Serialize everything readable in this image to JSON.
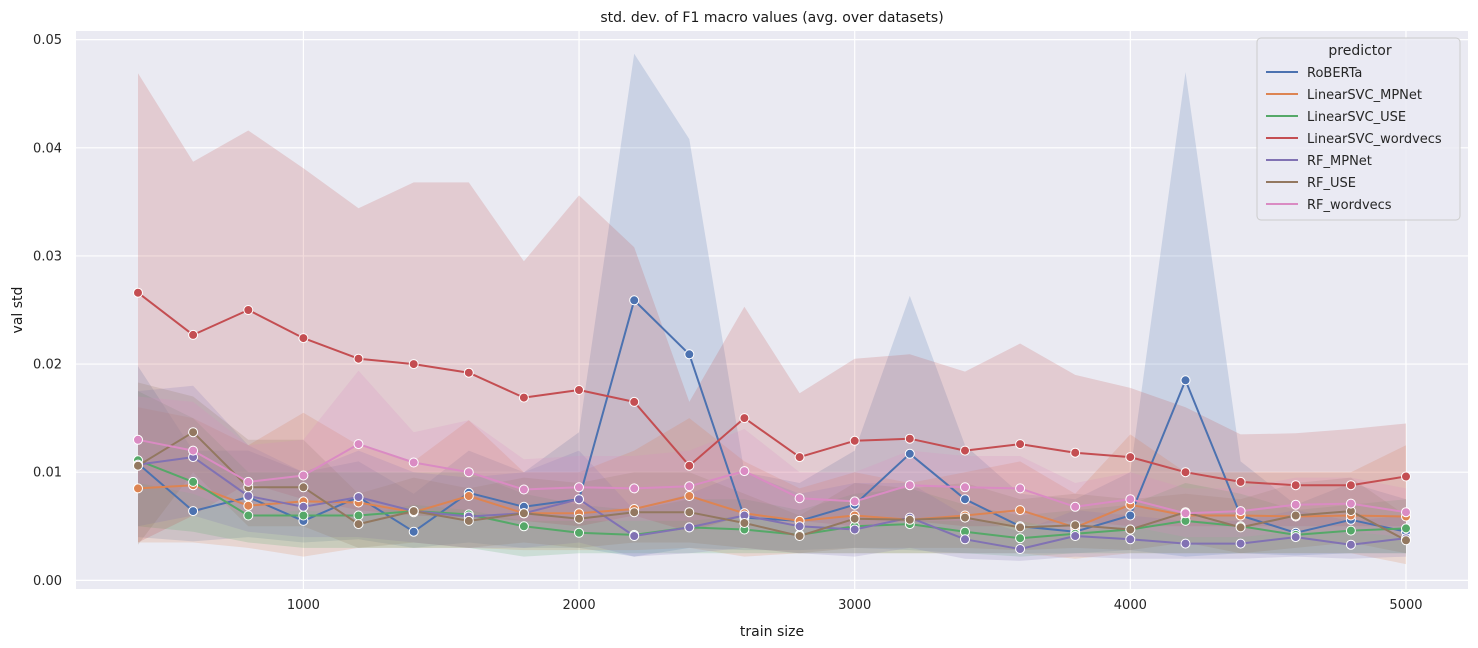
{
  "chart_data": {
    "type": "line",
    "title": "std. dev. of F1 macro values (avg. over datasets)",
    "xlabel": "train size",
    "ylabel": "val std",
    "xlim": [
      175,
      5225
    ],
    "ylim": [
      -0.0008,
      0.0508
    ],
    "xticks": [
      1000,
      2000,
      3000,
      4000,
      5000
    ],
    "xtick_labels": [
      "1000",
      "2000",
      "3000",
      "4000",
      "5000"
    ],
    "yticks": [
      0,
      0.01,
      0.02,
      0.03,
      0.04,
      0.05
    ],
    "ytick_labels": [
      "0.00",
      "0.01",
      "0.02",
      "0.03",
      "0.04",
      "0.05"
    ],
    "grid": true,
    "legend": {
      "title": "predictor",
      "placement": "top-right"
    },
    "x": [
      400,
      600,
      800,
      1000,
      1200,
      1400,
      1600,
      1800,
      2000,
      2200,
      2400,
      2600,
      2800,
      3000,
      3200,
      3400,
      3600,
      3800,
      4000,
      4200,
      4400,
      4600,
      4800,
      5000
    ],
    "series": [
      {
        "name": "RoBERTa",
        "color": "#4c72b0",
        "values": [
          0.0108,
          0.0064,
          0.0077,
          0.0055,
          0.0077,
          0.0045,
          0.0081,
          0.0068,
          0.0075,
          0.0259,
          0.0209,
          0.0058,
          0.0055,
          0.007,
          0.0117,
          0.0075,
          0.005,
          0.0045,
          0.006,
          0.0185,
          0.006,
          0.0044,
          0.0056,
          0.0045
        ],
        "band_lower": [
          0.004,
          0.0036,
          0.004,
          0.0035,
          0.0038,
          0.003,
          0.0035,
          0.003,
          0.003,
          0.0022,
          0.003,
          0.0028,
          0.0028,
          0.003,
          0.0028,
          0.0025,
          0.0025,
          0.0025,
          0.0028,
          0.0022,
          0.0025,
          0.0023,
          0.0025,
          0.0025
        ],
        "band_upper": [
          0.0198,
          0.012,
          0.012,
          0.01,
          0.011,
          0.008,
          0.012,
          0.01,
          0.0137,
          0.0487,
          0.0408,
          0.01,
          0.009,
          0.012,
          0.0263,
          0.0125,
          0.008,
          0.0075,
          0.01,
          0.047,
          0.011,
          0.007,
          0.009,
          0.0075
        ]
      },
      {
        "name": "LinearSVC_MPNet",
        "color": "#dd8452",
        "values": [
          0.0085,
          0.0088,
          0.0069,
          0.0073,
          0.0072,
          0.0063,
          0.0078,
          0.0062,
          0.0062,
          0.0066,
          0.0078,
          0.0062,
          0.0055,
          0.006,
          0.0056,
          0.006,
          0.0065,
          0.0049,
          0.007,
          0.006,
          0.006,
          0.0059,
          0.006,
          0.0059
        ],
        "band_lower": [
          0.0035,
          0.0035,
          0.003,
          0.0022,
          0.003,
          0.003,
          0.003,
          0.0028,
          0.0028,
          0.0028,
          0.003,
          0.0022,
          0.0025,
          0.0025,
          0.0025,
          0.0025,
          0.0025,
          0.002,
          0.0025,
          0.0025,
          0.0025,
          0.0025,
          0.0025,
          0.0015
        ],
        "band_upper": [
          0.016,
          0.015,
          0.0125,
          0.0155,
          0.0125,
          0.011,
          0.0148,
          0.01,
          0.01,
          0.012,
          0.015,
          0.011,
          0.0085,
          0.01,
          0.009,
          0.01,
          0.011,
          0.008,
          0.0135,
          0.01,
          0.01,
          0.01,
          0.01,
          0.0125
        ]
      },
      {
        "name": "LinearSVC_USE",
        "color": "#55a868",
        "values": [
          0.0111,
          0.0091,
          0.006,
          0.006,
          0.006,
          0.0064,
          0.0061,
          0.005,
          0.0044,
          0.0042,
          0.0049,
          0.0047,
          0.0042,
          0.005,
          0.0052,
          0.0045,
          0.0039,
          0.0043,
          0.0047,
          0.0055,
          0.005,
          0.0042,
          0.0046,
          0.0048
        ],
        "band_lower": [
          0.005,
          0.0045,
          0.0035,
          0.003,
          0.003,
          0.003,
          0.003,
          0.0022,
          0.0025,
          0.0025,
          0.0025,
          0.0025,
          0.0025,
          0.0025,
          0.0025,
          0.0025,
          0.0022,
          0.0025,
          0.0025,
          0.0025,
          0.0025,
          0.0025,
          0.0025,
          0.0025
        ],
        "band_upper": [
          0.0175,
          0.015,
          0.01,
          0.01,
          0.01,
          0.01,
          0.01,
          0.008,
          0.007,
          0.0065,
          0.0075,
          0.0075,
          0.0065,
          0.008,
          0.0085,
          0.007,
          0.006,
          0.0065,
          0.007,
          0.009,
          0.008,
          0.0065,
          0.007,
          0.0075
        ]
      },
      {
        "name": "LinearSVC_wordvecs",
        "color": "#c44e52",
        "values": [
          0.0266,
          0.0227,
          0.025,
          0.0224,
          0.0205,
          0.02,
          0.0192,
          0.0169,
          0.0176,
          0.0165,
          0.0106,
          0.015,
          0.0114,
          0.0129,
          0.0131,
          0.012,
          0.0126,
          0.0118,
          0.0114,
          0.01,
          0.0091,
          0.0088,
          0.0088,
          0.0096
        ],
        "band_lower": [
          0.0035,
          0.006,
          0.009,
          0.0075,
          0.0065,
          0.006,
          0.0058,
          0.0055,
          0.005,
          0.006,
          0.0045,
          0.006,
          0.0055,
          0.005,
          0.0055,
          0.005,
          0.005,
          0.0055,
          0.005,
          0.005,
          0.005,
          0.005,
          0.005,
          0.005
        ],
        "band_upper": [
          0.0469,
          0.0387,
          0.0416,
          0.0381,
          0.0344,
          0.0368,
          0.0368,
          0.0295,
          0.0356,
          0.0308,
          0.0165,
          0.0253,
          0.0173,
          0.0205,
          0.0209,
          0.0193,
          0.0219,
          0.019,
          0.0178,
          0.016,
          0.0135,
          0.0136,
          0.014,
          0.0145
        ]
      },
      {
        "name": "RF_MPNet",
        "color": "#8172b3",
        "values": [
          0.0107,
          0.0114,
          0.0078,
          0.0068,
          0.0077,
          0.0064,
          0.0059,
          0.0062,
          0.0075,
          0.0041,
          0.0049,
          0.006,
          0.005,
          0.0047,
          0.0058,
          0.0038,
          0.0029,
          0.0041,
          0.0038,
          0.0034,
          0.0034,
          0.004,
          0.0033,
          0.0039
        ],
        "band_lower": [
          0.005,
          0.006,
          0.0045,
          0.004,
          0.004,
          0.0035,
          0.003,
          0.003,
          0.0035,
          0.0022,
          0.0025,
          0.003,
          0.0025,
          0.0022,
          0.003,
          0.002,
          0.0018,
          0.0022,
          0.002,
          0.002,
          0.002,
          0.0022,
          0.002,
          0.0022
        ],
        "band_upper": [
          0.0175,
          0.018,
          0.0125,
          0.01,
          0.012,
          0.01,
          0.0095,
          0.01,
          0.012,
          0.0065,
          0.008,
          0.01,
          0.008,
          0.009,
          0.009,
          0.006,
          0.0045,
          0.0065,
          0.006,
          0.0055,
          0.0055,
          0.0065,
          0.0055,
          0.006
        ]
      },
      {
        "name": "RF_USE",
        "color": "#937860",
        "values": [
          0.0106,
          0.0137,
          0.0086,
          0.0086,
          0.0052,
          0.0064,
          0.0055,
          0.0062,
          0.0057,
          0.0063,
          0.0063,
          0.0053,
          0.0041,
          0.0057,
          0.0056,
          0.0058,
          0.0049,
          0.0051,
          0.0047,
          0.0063,
          0.0049,
          0.006,
          0.0064,
          0.0037
        ],
        "band_lower": [
          0.0033,
          0.01,
          0.005,
          0.005,
          0.003,
          0.0035,
          0.003,
          0.0035,
          0.003,
          0.0035,
          0.0035,
          0.003,
          0.0025,
          0.003,
          0.003,
          0.003,
          0.0028,
          0.003,
          0.0028,
          0.0035,
          0.0025,
          0.003,
          0.0035,
          0.0025
        ],
        "band_upper": [
          0.0183,
          0.017,
          0.013,
          0.013,
          0.008,
          0.0095,
          0.0085,
          0.0095,
          0.009,
          0.01,
          0.01,
          0.008,
          0.006,
          0.009,
          0.0085,
          0.009,
          0.0075,
          0.008,
          0.0075,
          0.008,
          0.0075,
          0.009,
          0.0095,
          0.006
        ]
      },
      {
        "name": "RF_wordvecs",
        "color": "#da8bc3",
        "values": [
          0.013,
          0.012,
          0.0091,
          0.0097,
          0.0126,
          0.0109,
          0.01,
          0.0084,
          0.0086,
          0.0085,
          0.0087,
          0.0101,
          0.0076,
          0.0073,
          0.0088,
          0.0086,
          0.0085,
          0.0068,
          0.0075,
          0.0062,
          0.0064,
          0.007,
          0.0071,
          0.0063
        ],
        "band_lower": [
          0.009,
          0.008,
          0.006,
          0.0065,
          0.006,
          0.007,
          0.0065,
          0.0055,
          0.0055,
          0.0055,
          0.0055,
          0.006,
          0.005,
          0.005,
          0.0055,
          0.0055,
          0.0055,
          0.0045,
          0.005,
          0.004,
          0.004,
          0.0045,
          0.0045,
          0.004
        ],
        "band_upper": [
          0.017,
          0.0165,
          0.0125,
          0.013,
          0.0194,
          0.0137,
          0.0148,
          0.0112,
          0.0115,
          0.0115,
          0.012,
          0.014,
          0.01,
          0.01,
          0.012,
          0.0115,
          0.0115,
          0.009,
          0.01,
          0.0085,
          0.0085,
          0.0095,
          0.0095,
          0.0085
        ]
      }
    ]
  }
}
